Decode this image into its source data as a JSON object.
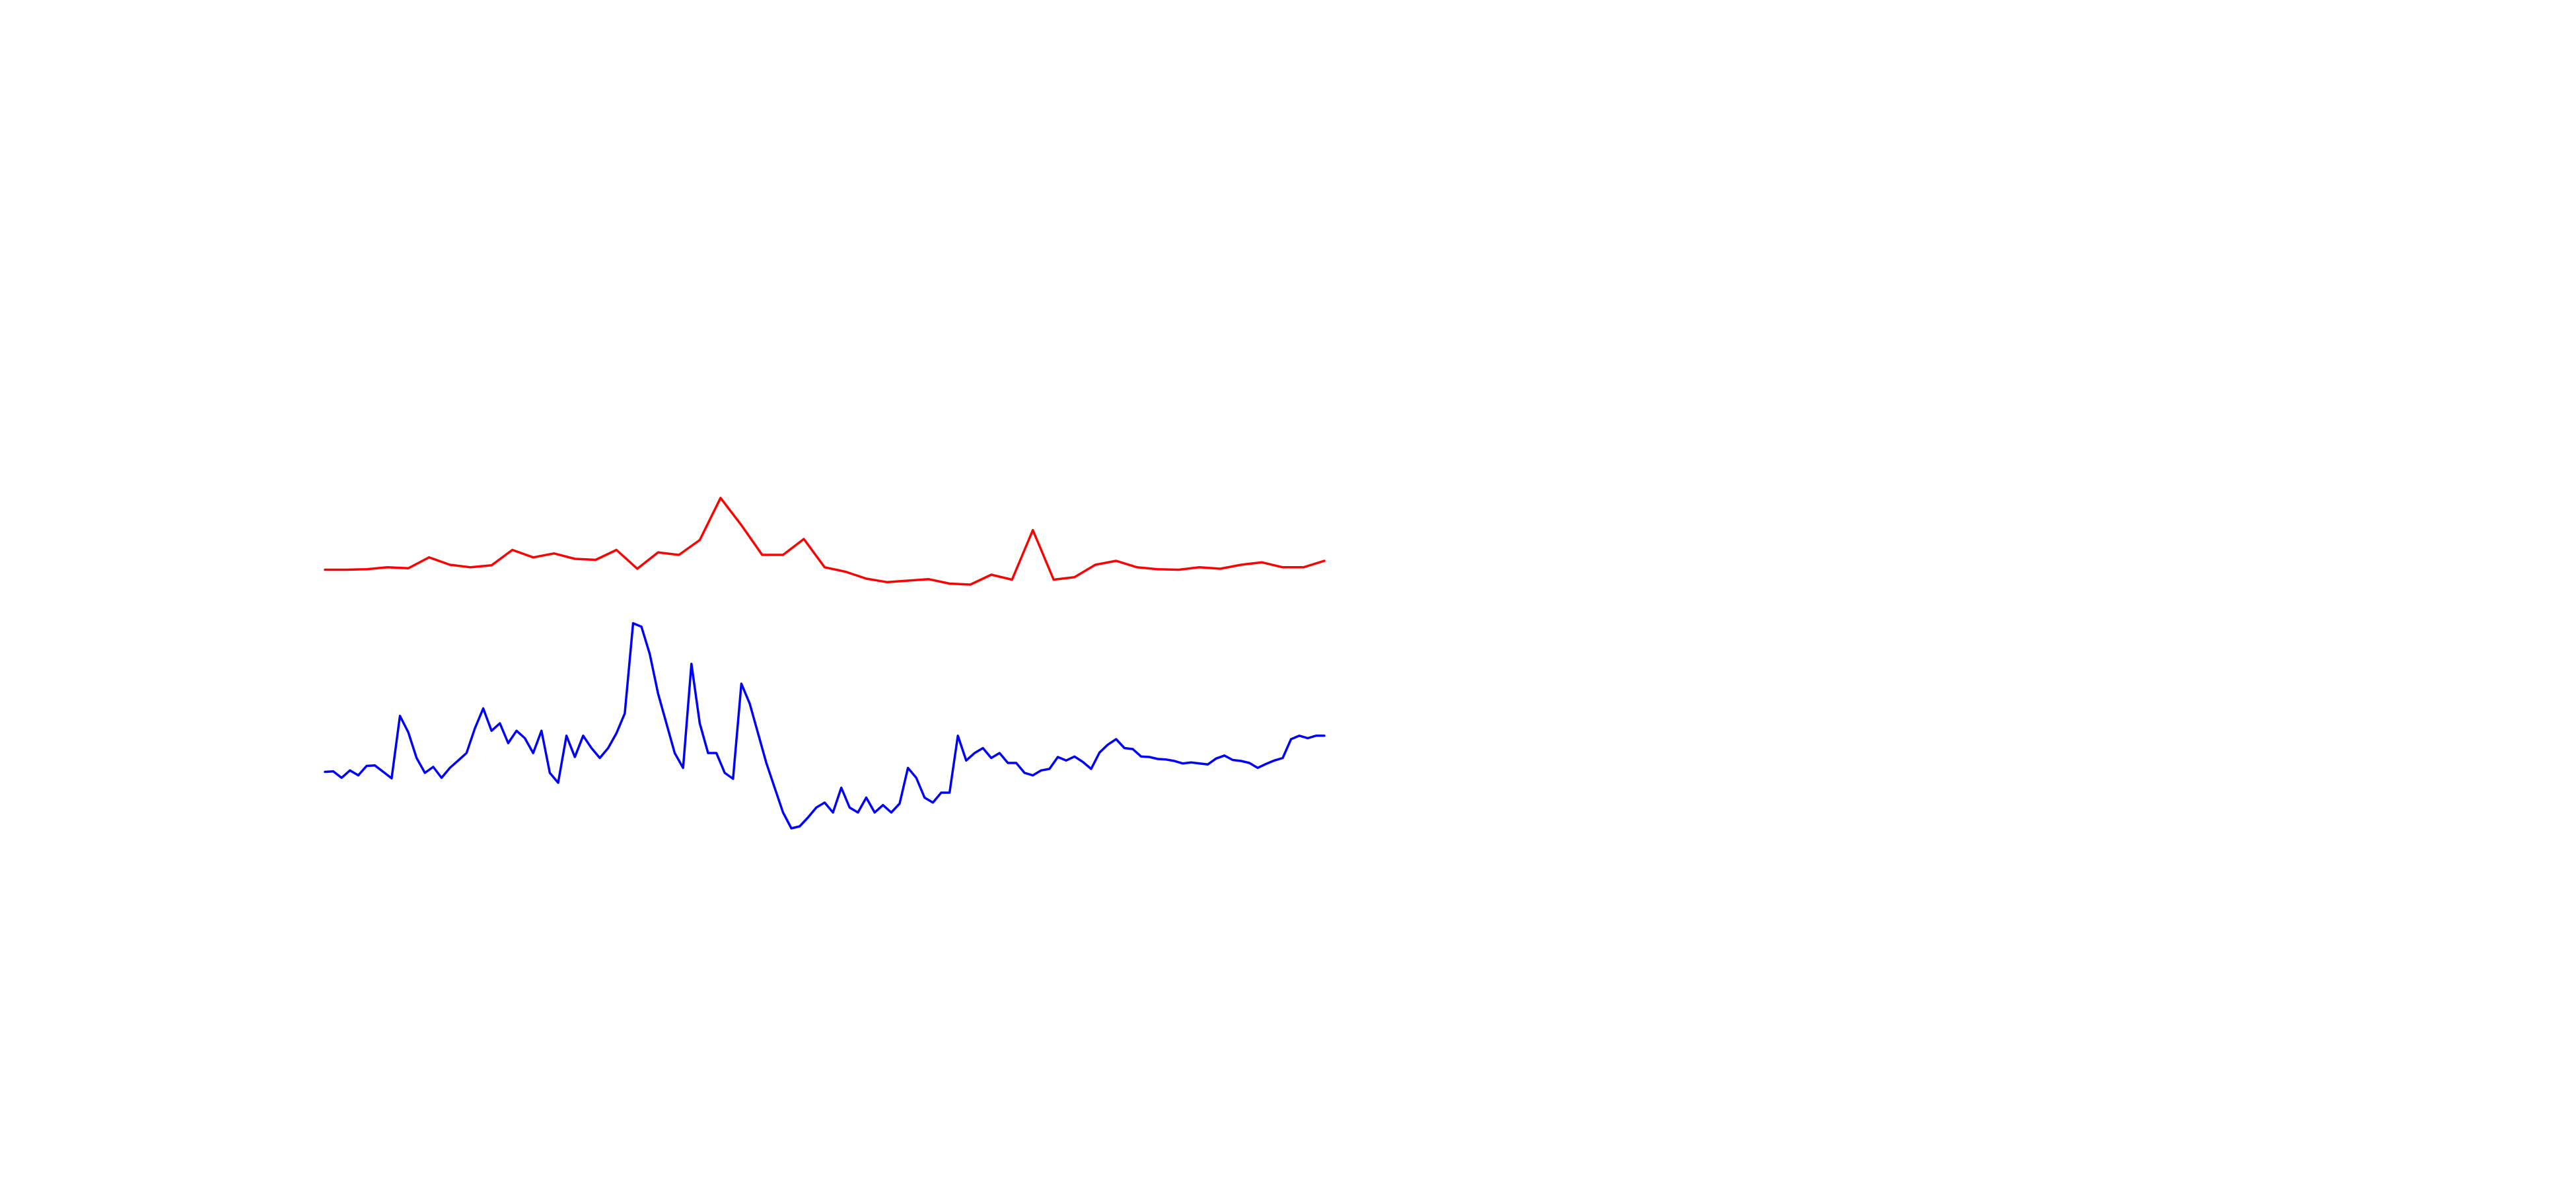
{
  "chart_data": {
    "type": "line",
    "title": "",
    "xlabel": "",
    "ylabel": "",
    "axes_visible": false,
    "grid": false,
    "legend": "none",
    "xlim": [
      0,
      240
    ],
    "ylim": [
      0,
      1
    ],
    "series": [
      {
        "color": "#ff0000",
        "x": [
          0,
          5,
          10,
          15,
          20,
          25,
          30,
          35,
          40,
          45,
          50,
          55,
          60,
          65,
          70,
          75,
          80,
          85,
          90,
          95,
          100,
          105,
          110,
          115,
          120,
          125,
          130,
          135,
          140,
          145,
          150,
          155,
          160,
          165,
          170,
          175,
          180,
          185,
          190,
          195,
          200,
          205,
          210,
          215,
          220,
          225,
          230,
          235,
          240
        ],
        "values": [
          0.79,
          0.79,
          0.791,
          0.795,
          0.793,
          0.815,
          0.8,
          0.795,
          0.799,
          0.83,
          0.815,
          0.823,
          0.812,
          0.81,
          0.83,
          0.792,
          0.825,
          0.82,
          0.85,
          0.935,
          0.88,
          0.82,
          0.82,
          0.852,
          0.795,
          0.786,
          0.772,
          0.765,
          0.768,
          0.771,
          0.762,
          0.76,
          0.78,
          0.77,
          0.87,
          0.77,
          0.775,
          0.8,
          0.808,
          0.795,
          0.791,
          0.79,
          0.795,
          0.792,
          0.8,
          0.805,
          0.795,
          0.795,
          0.808
        ]
      },
      {
        "color": "#0000ff",
        "x": [
          0,
          2,
          4,
          6,
          8,
          10,
          12,
          14,
          16,
          18,
          20,
          22,
          24,
          26,
          28,
          30,
          32,
          34,
          36,
          38,
          40,
          42,
          44,
          46,
          48,
          50,
          52,
          54,
          56,
          58,
          60,
          62,
          64,
          66,
          68,
          70,
          72,
          74,
          76,
          78,
          80,
          82,
          84,
          86,
          88,
          90,
          92,
          94,
          96,
          98,
          100,
          102,
          104,
          106,
          108,
          110,
          112,
          114,
          116,
          118,
          120,
          122,
          124,
          126,
          128,
          130,
          132,
          134,
          136,
          138,
          140,
          142,
          144,
          146,
          148,
          150,
          152,
          154,
          156,
          158,
          160,
          162,
          164,
          166,
          168,
          170,
          172,
          174,
          176,
          178,
          180,
          182,
          184,
          186,
          188,
          190,
          192,
          194,
          196,
          198,
          200,
          202,
          204,
          206,
          208,
          210,
          212,
          214,
          216,
          218,
          220,
          222,
          224,
          226,
          228,
          230,
          232,
          234,
          236,
          238,
          240
        ],
        "values": [
          0.382,
          0.383,
          0.37,
          0.385,
          0.375,
          0.394,
          0.395,
          0.382,
          0.369,
          0.495,
          0.462,
          0.41,
          0.38,
          0.392,
          0.37,
          0.39,
          0.405,
          0.42,
          0.47,
          0.51,
          0.465,
          0.48,
          0.44,
          0.465,
          0.45,
          0.42,
          0.465,
          0.38,
          0.36,
          0.455,
          0.412,
          0.455,
          0.43,
          0.41,
          0.43,
          0.46,
          0.5,
          0.682,
          0.675,
          0.62,
          0.54,
          0.48,
          0.42,
          0.39,
          0.6,
          0.48,
          0.42,
          0.42,
          0.38,
          0.368,
          0.56,
          0.52,
          0.46,
          0.4,
          0.35,
          0.3,
          0.268,
          0.272,
          0.29,
          0.31,
          0.32,
          0.3,
          0.35,
          0.31,
          0.3,
          0.33,
          0.3,
          0.315,
          0.3,
          0.318,
          0.39,
          0.37,
          0.33,
          0.32,
          0.34,
          0.34,
          0.455,
          0.405,
          0.42,
          0.43,
          0.41,
          0.42,
          0.4,
          0.4,
          0.38,
          0.375,
          0.385,
          0.388,
          0.412,
          0.405,
          0.413,
          0.402,
          0.388,
          0.421,
          0.437,
          0.448,
          0.43,
          0.428,
          0.413,
          0.412,
          0.408,
          0.407,
          0.404,
          0.399,
          0.401,
          0.399,
          0.397,
          0.409,
          0.415,
          0.406,
          0.404,
          0.4,
          0.39,
          0.398,
          0.405,
          0.41,
          0.448,
          0.455,
          0.45,
          0.455,
          0.455
        ]
      }
    ]
  }
}
